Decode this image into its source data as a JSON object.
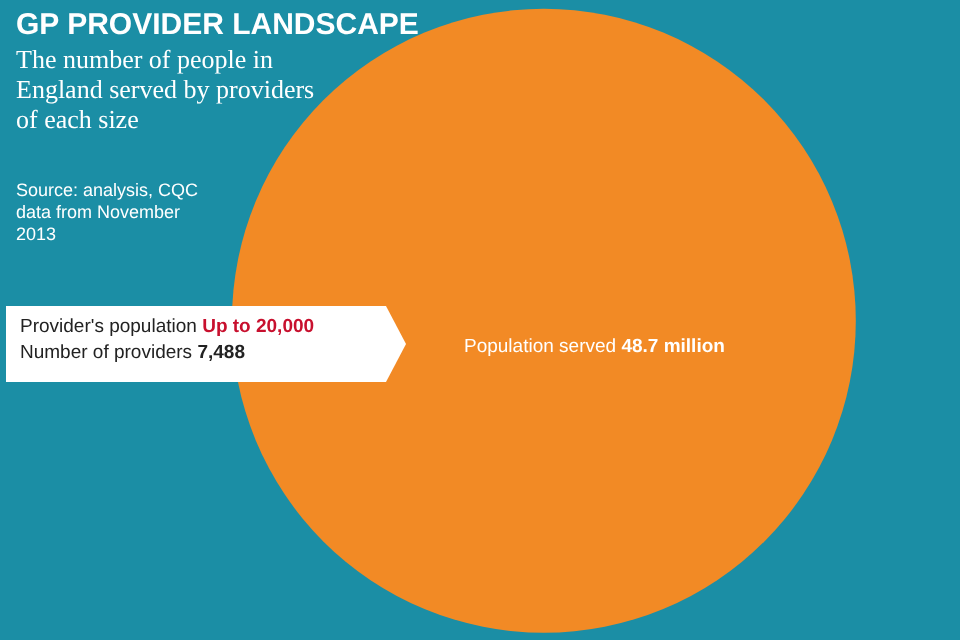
{
  "chart_data": {
    "type": "other",
    "title": "GP PROVIDER LANDSCAPE",
    "subtitle": "The number of people in England served by providers of each size",
    "annotations": [
      "Source: analysis, CQC data from November 2013",
      "Provider's population",
      "Up to 20,000",
      "Number of providers",
      "7,488",
      "Population served"
    ],
    "values": [
      48.7
    ],
    "value_labels": [
      "48.7 million"
    ],
    "color": "#f28a25"
  }
}
